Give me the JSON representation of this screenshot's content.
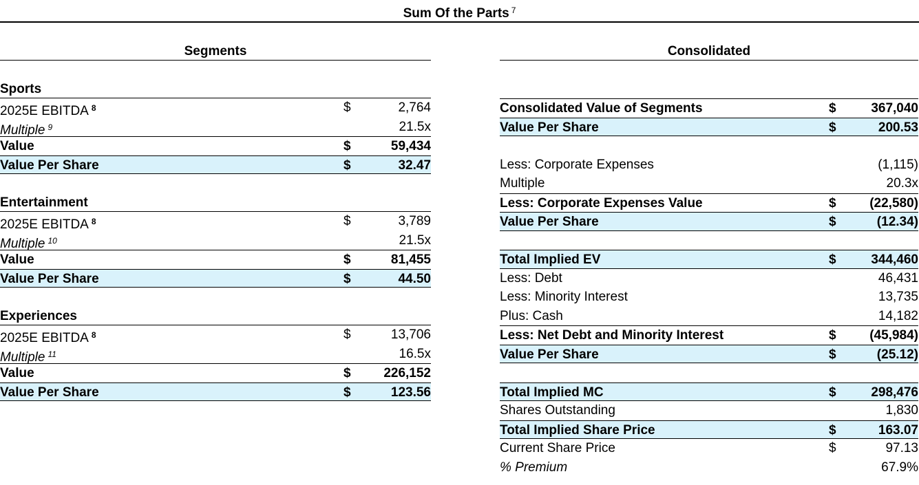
{
  "title": {
    "text": "Sum Of the Parts",
    "footnote": "7"
  },
  "segments": {
    "header": "Segments",
    "groups": [
      {
        "name": "Sports",
        "rows": [
          {
            "label": "2025E EBITDA",
            "note": "8",
            "currency": "$",
            "value": "2,764"
          },
          {
            "label": "Multiple",
            "note": "9",
            "currency": "",
            "value": "21.5x"
          },
          {
            "label": "Value",
            "note": "",
            "currency": "$",
            "value": "59,434"
          },
          {
            "label": "Value Per Share",
            "note": "",
            "currency": "$",
            "value": "32.47"
          }
        ]
      },
      {
        "name": "Entertainment",
        "rows": [
          {
            "label": "2025E EBITDA",
            "note": "8",
            "currency": "$",
            "value": "3,789"
          },
          {
            "label": "Multiple",
            "note": "10",
            "currency": "",
            "value": "21.5x"
          },
          {
            "label": "Value",
            "note": "",
            "currency": "$",
            "value": "81,455"
          },
          {
            "label": "Value Per Share",
            "note": "",
            "currency": "$",
            "value": "44.50"
          }
        ]
      },
      {
        "name": "Experiences",
        "rows": [
          {
            "label": "2025E EBITDA",
            "note": "8",
            "currency": "$",
            "value": "13,706"
          },
          {
            "label": "Multiple",
            "note": "11",
            "currency": "",
            "value": "16.5x"
          },
          {
            "label": "Value",
            "note": "",
            "currency": "$",
            "value": "226,152"
          },
          {
            "label": "Value Per Share",
            "note": "",
            "currency": "$",
            "value": "123.56"
          }
        ]
      }
    ]
  },
  "consolidated": {
    "header": "Consolidated",
    "rows": [
      {
        "label": "Consolidated Value of Segments",
        "currency": "$",
        "value": "367,040"
      },
      {
        "label": "Value Per Share",
        "currency": "$",
        "value": "200.53"
      },
      {
        "label": "Less: Corporate Expenses",
        "currency": "",
        "value": "(1,115)"
      },
      {
        "label": "Multiple",
        "currency": "",
        "value": "20.3x"
      },
      {
        "label": "Less: Corporate Expenses Value",
        "currency": "$",
        "value": "(22,580)"
      },
      {
        "label": "Value Per Share",
        "currency": "$",
        "value": "(12.34)"
      },
      {
        "label": "Total Implied EV",
        "currency": "$",
        "value": "344,460"
      },
      {
        "label": "Less: Debt",
        "currency": "",
        "value": "46,431"
      },
      {
        "label": "Less: Minority Interest",
        "currency": "",
        "value": "13,735"
      },
      {
        "label": "Plus: Cash",
        "currency": "",
        "value": "14,182"
      },
      {
        "label": "Less: Net Debt and Minority Interest",
        "currency": "$",
        "value": "(45,984)"
      },
      {
        "label": "Value Per Share",
        "currency": "$",
        "value": "(25.12)"
      },
      {
        "label": "Total Implied MC",
        "currency": "$",
        "value": "298,476"
      },
      {
        "label": "Shares Outstanding",
        "currency": "",
        "value": "1,830"
      },
      {
        "label": "Total Implied Share Price",
        "currency": "$",
        "value": "163.07"
      },
      {
        "label": "Current Share Price",
        "currency": "$",
        "value": "97.13"
      },
      {
        "label": "% Premium",
        "currency": "",
        "value": "67.9%"
      }
    ]
  }
}
